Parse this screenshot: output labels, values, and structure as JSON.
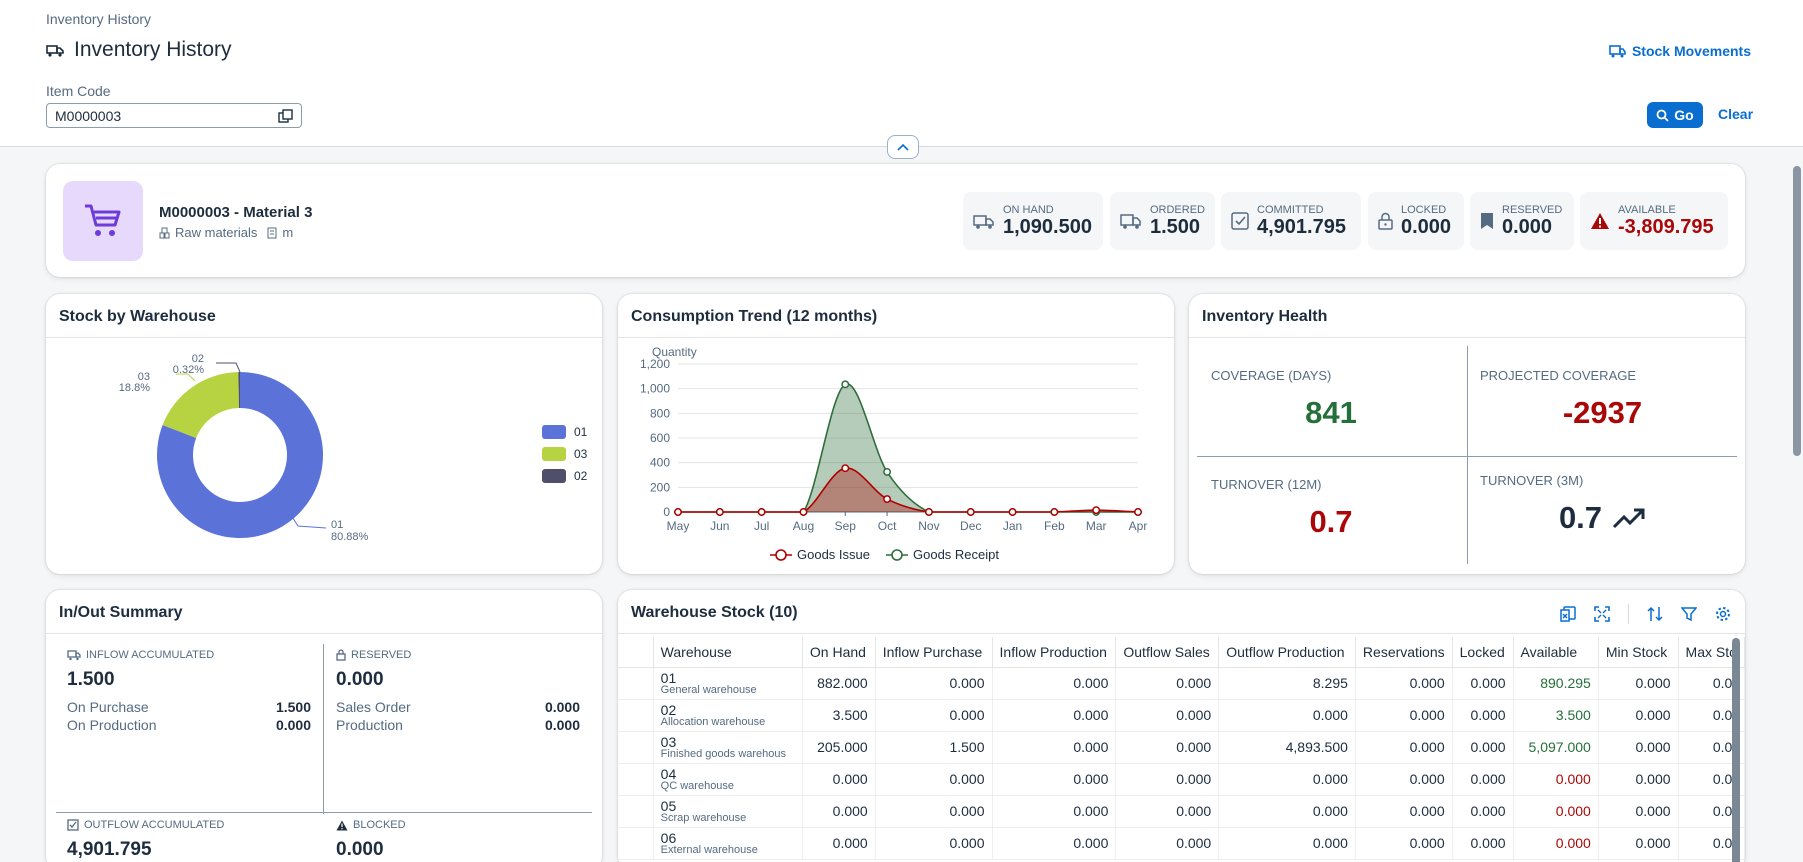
{
  "header": {
    "breadcrumb": "Inventory History",
    "title": "Inventory History",
    "stock_movements": "Stock Movements",
    "filter_label": "Item Code",
    "filter_value": "M0000003",
    "go": "Go",
    "clear": "Clear"
  },
  "item": {
    "name": "M0000003 - Material 3",
    "group": "Raw materials",
    "uom": "m",
    "kpis": [
      {
        "label": "ON HAND",
        "value": "1,090.500",
        "icon": "truck-stock-icon"
      },
      {
        "label": "ORDERED",
        "value": "1.500",
        "icon": "truck-icon"
      },
      {
        "label": "COMMITTED",
        "value": "4,901.795",
        "icon": "checkbox-icon"
      },
      {
        "label": "LOCKED",
        "value": "0.000",
        "icon": "lock-icon"
      },
      {
        "label": "RESERVED",
        "value": "0.000",
        "icon": "bookmark-icon"
      },
      {
        "label": "AVAILABLE",
        "value": "-3,809.795",
        "icon": "warning-icon"
      }
    ]
  },
  "stock_by_warehouse": {
    "title": "Stock by Warehouse",
    "labels": {
      "w01": "01",
      "w01p": "80.88%",
      "w03": "03",
      "w03p": "18.8%",
      "w02": "02",
      "w02p": "0.32%"
    },
    "legend": [
      "01",
      "03",
      "02"
    ]
  },
  "consumption": {
    "title": "Consumption Trend (12 months)",
    "legend_issue": "Goods Issue",
    "legend_receipt": "Goods Receipt"
  },
  "chart_data": {
    "type": "area",
    "ylabel": "Quantity",
    "categories": [
      "May",
      "Jun",
      "Jul",
      "Aug",
      "Sep",
      "Oct",
      "Nov",
      "Dec",
      "Jan",
      "Feb",
      "Mar",
      "Apr"
    ],
    "ylim": [
      0,
      1200
    ],
    "yticks": [
      0,
      200,
      400,
      600,
      800,
      1000,
      1200
    ],
    "series": [
      {
        "name": "Goods Issue",
        "values": [
          0,
          0,
          0,
          0,
          355,
          105,
          0,
          0,
          0,
          0,
          15,
          0
        ],
        "color": "#b00000"
      },
      {
        "name": "Goods Receipt",
        "values": [
          0,
          0,
          0,
          0,
          1035,
          325,
          0,
          0,
          0,
          0,
          0,
          0
        ],
        "color": "#2f6e3b"
      }
    ]
  },
  "pie_data": {
    "type": "pie",
    "categories": [
      "01",
      "03",
      "02"
    ],
    "values": [
      80.88,
      18.8,
      0.32
    ],
    "colors": [
      "#5b73d8",
      "#b7d342",
      "#4f4f6b"
    ]
  },
  "health": {
    "title": "Inventory Health",
    "coverage_label": "COVERAGE (DAYS)",
    "coverage_value": "841",
    "projected_label": "PROJECTED COVERAGE",
    "projected_value": "-2937",
    "turn12_label": "TURNOVER (12M)",
    "turn12_value": "0.7",
    "turn3_label": "TURNOVER (3M)",
    "turn3_value": "0.7"
  },
  "inout": {
    "title": "In/Out Summary",
    "inflow_label": "INFLOW ACCUMULATED",
    "inflow_value": "1.500",
    "on_purchase_label": "On Purchase",
    "on_purchase_value": "1.500",
    "on_production_label": "On Production",
    "on_production_value": "0.000",
    "reserved_label": "RESERVED",
    "reserved_value": "0.000",
    "sales_order_label": "Sales Order",
    "sales_order_value": "0.000",
    "production_label": "Production",
    "production_value": "0.000",
    "outflow_label": "OUTFLOW ACCUMULATED",
    "outflow_value": "4,901.795",
    "blocked_label": "BLOCKED",
    "blocked_value": "0.000"
  },
  "warehouse_stock": {
    "title": "Warehouse Stock (10)",
    "columns": [
      "Warehouse",
      "On Hand",
      "Inflow Purchase",
      "Inflow Production",
      "Outflow Sales",
      "Outflow Production",
      "Reservations",
      "Locked",
      "Available",
      "Min Stock",
      "Max Sto"
    ],
    "rows": [
      {
        "code": "01",
        "name": "General warehouse",
        "cells": [
          "882.000",
          "0.000",
          "0.000",
          "0.000",
          "8.295",
          "0.000",
          "0.000",
          "890.295",
          "0.000",
          "0.0("
        ],
        "avail": "pos"
      },
      {
        "code": "02",
        "name": "Allocation warehouse",
        "cells": [
          "3.500",
          "0.000",
          "0.000",
          "0.000",
          "0.000",
          "0.000",
          "0.000",
          "3.500",
          "0.000",
          "0.0("
        ],
        "avail": "pos"
      },
      {
        "code": "03",
        "name": "Finished goods warehous",
        "cells": [
          "205.000",
          "1.500",
          "0.000",
          "0.000",
          "4,893.500",
          "0.000",
          "0.000",
          "5,097.000",
          "0.000",
          "0.0("
        ],
        "avail": "pos"
      },
      {
        "code": "04",
        "name": "QC warehouse",
        "cells": [
          "0.000",
          "0.000",
          "0.000",
          "0.000",
          "0.000",
          "0.000",
          "0.000",
          "0.000",
          "0.000",
          "0.0("
        ],
        "avail": "neg"
      },
      {
        "code": "05",
        "name": "Scrap warehouse",
        "cells": [
          "0.000",
          "0.000",
          "0.000",
          "0.000",
          "0.000",
          "0.000",
          "0.000",
          "0.000",
          "0.000",
          "0.0("
        ],
        "avail": "neg"
      },
      {
        "code": "06",
        "name": "External warehouse",
        "cells": [
          "0.000",
          "0.000",
          "0.000",
          "0.000",
          "0.000",
          "0.000",
          "0.000",
          "0.000",
          "0.000",
          "0.0("
        ],
        "avail": "neg"
      }
    ]
  }
}
